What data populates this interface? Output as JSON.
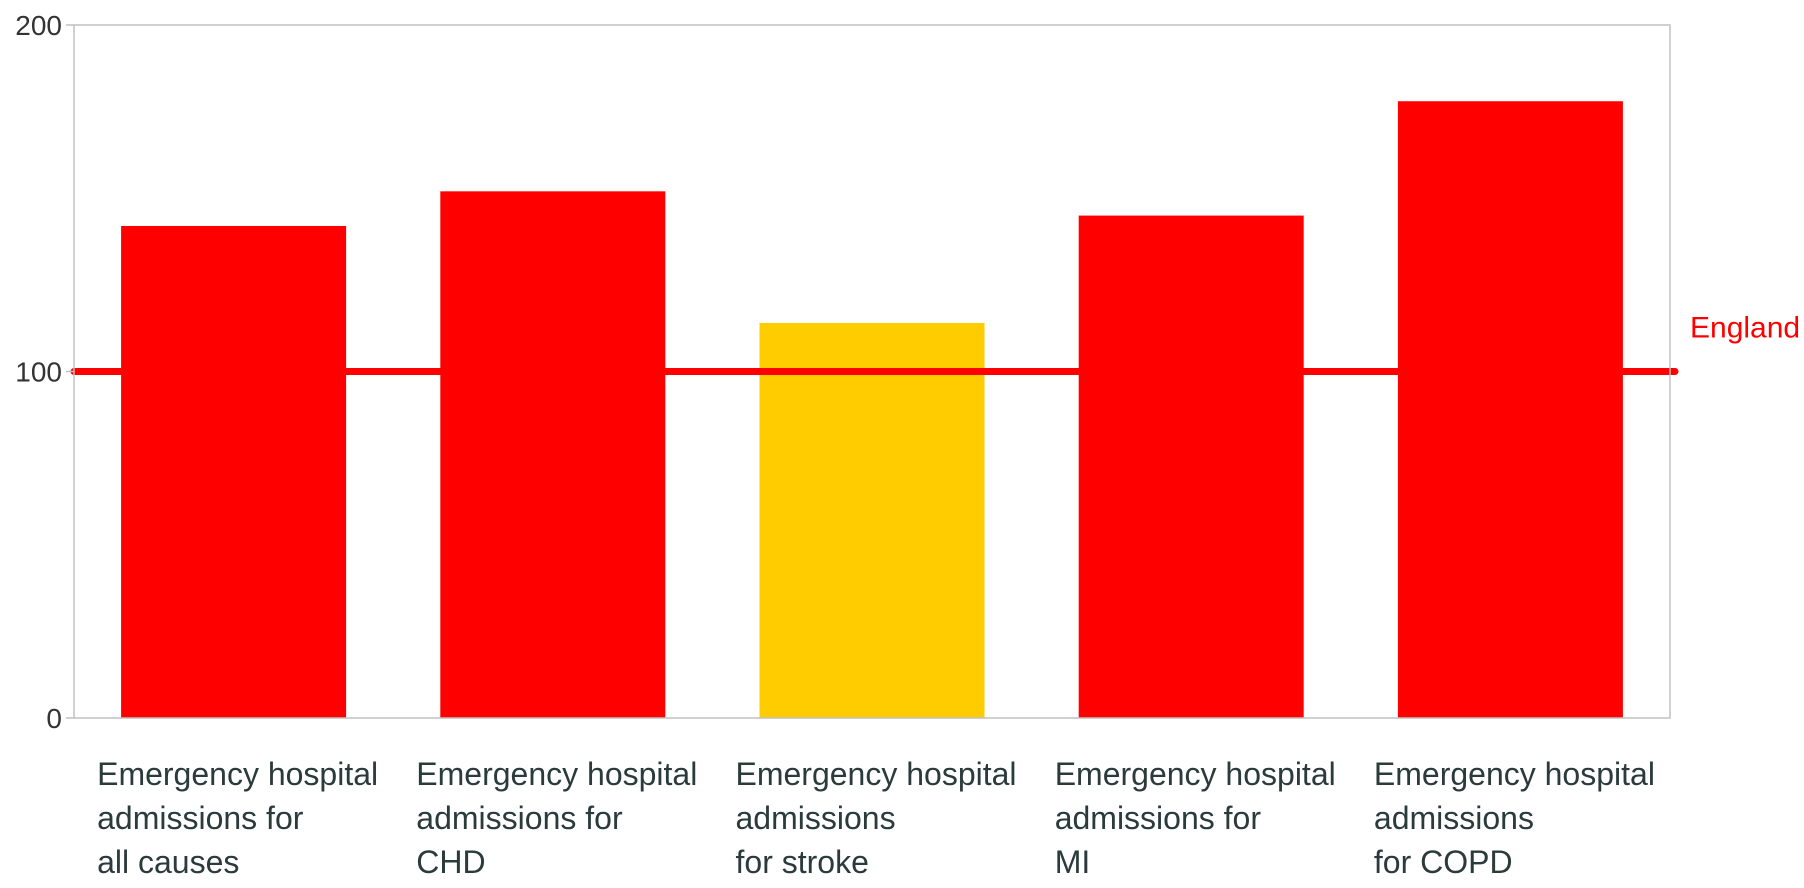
{
  "chart_data": {
    "type": "bar",
    "title": "",
    "xlabel": "",
    "ylabel": "",
    "ylim": [
      0,
      200
    ],
    "yticks": [
      "0",
      "100",
      "200"
    ],
    "grid": false,
    "categories": [
      [
        "Emergency hospital",
        "admissions for",
        "all causes"
      ],
      [
        "Emergency hospital",
        "admissions for",
        "CHD"
      ],
      [
        "Emergency hospital",
        "admissions",
        "for stroke"
      ],
      [
        "Emergency hospital",
        "admissions for",
        "MI"
      ],
      [
        "Emergency hospital",
        "admissions",
        "for COPD"
      ]
    ],
    "values": [
      142,
      152,
      114,
      145,
      178
    ],
    "bar_colors": [
      "#ff0000",
      "#ff0000",
      "#ffcc00",
      "#ff0000",
      "#ff0000"
    ],
    "reference_line": {
      "label": "England",
      "value": 100,
      "color": "#ff0000"
    },
    "axis_color": "#c0c0c0"
  }
}
